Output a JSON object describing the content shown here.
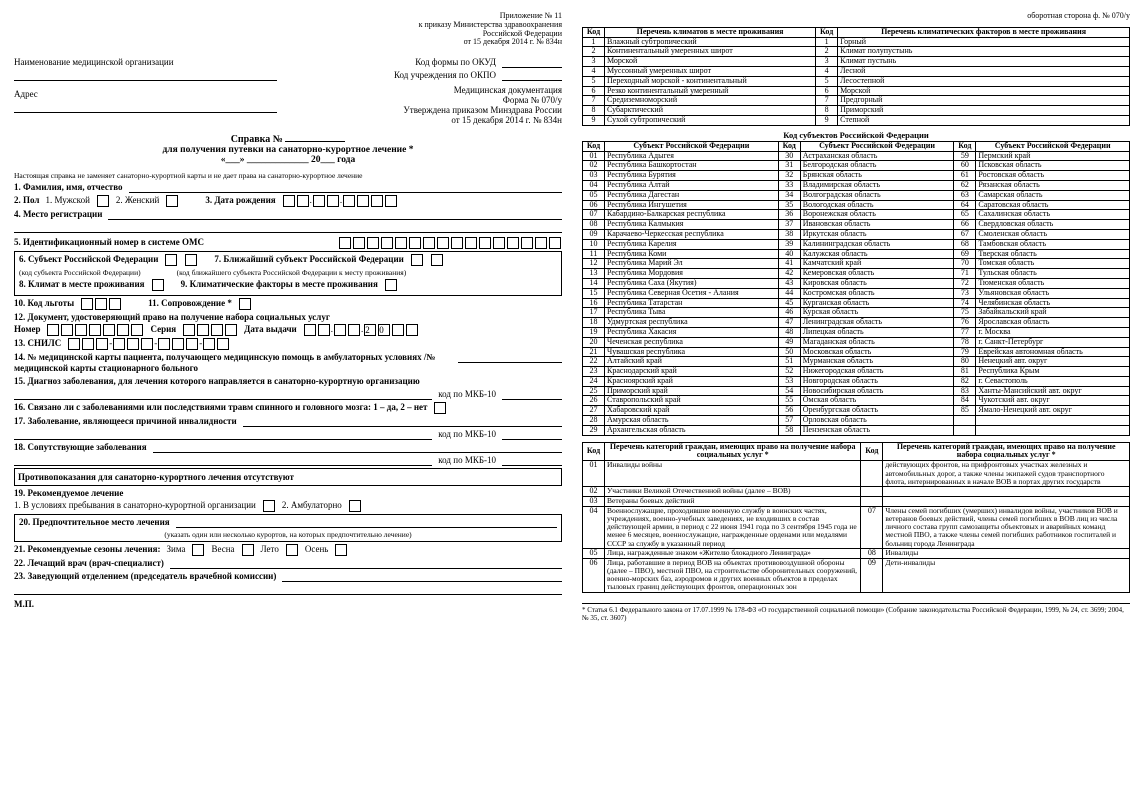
{
  "leftPage": {
    "appendix": [
      "Приложение № 11",
      "к приказу Министерства здравоохранения",
      "Российской Федерации",
      "от 15 декабря 2014 г. № 834н"
    ],
    "orgLabel": "Наименование медицинской организации",
    "addressLabel": "Адрес",
    "codes": {
      "okud": "Код формы по ОКУД",
      "okpo": "Код учреждения по ОКПО"
    },
    "docHdr": [
      "Медицинская документация",
      "Форма № 070/у",
      "Утверждена приказом Минздрава России",
      "от 15 декабря 2014 г. № 834н"
    ],
    "title1": "Справка №",
    "title2": "для получения путевки на санаторно-курортное лечение *",
    "dateLine": "«___» _____________ 20___ года",
    "note": "Настоящая справка не заменяет санаторно-курортной карты и не дает права на санаторно-курортное лечение",
    "f1": "1. Фамилия, имя, отчество",
    "f2": "2. Пол",
    "f2a": "1. Мужской",
    "f2b": "2. Женский",
    "f3": "3. Дата рождения",
    "f4": "4. Место регистрации",
    "f5": "5. Идентификационный номер в системе ОМС",
    "f6": "6. Субъект Российской Федерации",
    "f6s": "(код субъекта Российской Федерации)",
    "f7": "7. Ближайший субъект Российской Федерации",
    "f7s": "(код ближайшего субъекта Российской Федерации к месту проживания)",
    "f8": "8. Климат в месте проживания",
    "f9": "9. Климатические факторы в месте проживания",
    "f10": "10. Код льготы",
    "f11": "11. Сопровождение *",
    "f12": "12. Документ, удостоверяющий право на получение набора социальных услуг",
    "f12n": "Номер",
    "f12s": "Серия",
    "f12d": "Дата выдачи",
    "f13": "13. СНИЛС",
    "f14": "14. № медицинской карты пациента, получающего медицинскую помощь в амбулаторных условиях /№ медицинской карты стационарного больного",
    "f15": "15. Диагноз заболевания, для лечения которого направляется в санаторно-курортную организацию",
    "mkb": "код по МКБ-10",
    "f16": "16. Связано ли с заболеваниями или последствиями травм спинного и головного мозга: 1 – да, 2 – нет",
    "f17": "17. Заболевание, являющееся причиной инвалидности",
    "f18": "18. Сопутствующие заболевания",
    "contra": "Противопоказания для санаторно-курортного лечения отсутствуют",
    "f19": "19. Рекомендуемое лечение",
    "f19a": "1. В условиях пребывания в санаторно-курортной организации",
    "f19b": "2. Амбулаторно",
    "f20": "20. Предпочтительное место лечения",
    "f20s": "(указать один или несколько курортов, на которых предпочтительно лечение)",
    "f21": "21. Рекомендуемые сезоны лечения:",
    "s1": "Зима",
    "s2": "Весна",
    "s3": "Лето",
    "s4": "Осень",
    "f22": "22. Лечащий врач (врач-специалист)",
    "f23": "23. Заведующий отделением (председатель врачебной комиссии)",
    "mp": "М.П."
  },
  "rightPage": {
    "corner": "оборотная сторона ф. № 070/у",
    "climates": {
      "h1": "Код",
      "h2": "Перечень климатов в месте проживания",
      "h3": "Код",
      "h4": "Перечень климатических факторов в месте проживания",
      "rows": [
        [
          "1",
          "Влажный субтропический",
          "1",
          "Горный"
        ],
        [
          "2",
          "Континентальный умеренных широт",
          "2",
          "Климат полупустынь"
        ],
        [
          "3",
          "Морской",
          "3",
          "Климат пустынь"
        ],
        [
          "4",
          "Муссонный умеренных широт",
          "4",
          "Лесной"
        ],
        [
          "5",
          "Переходный морской - континентальный",
          "5",
          "Лесостепной"
        ],
        [
          "6",
          "Резко континентальный умеренный",
          "6",
          "Морской"
        ],
        [
          "7",
          "Средиземноморский",
          "7",
          "Предгорный"
        ],
        [
          "8",
          "Субарктический",
          "8",
          "Приморский"
        ],
        [
          "9",
          "Сухой субтропический",
          "9",
          "Степной"
        ]
      ]
    },
    "subjectsTitle": "Код субъектов Российской Федерации",
    "subjectsHdr": [
      "Код",
      "Субъект Российской Федерации",
      "Код",
      "Субъект Российской Федерации",
      "Код",
      "Субъект Российской Федерации"
    ],
    "subjects": [
      [
        "01",
        "Республика Адыгея",
        "30",
        "Астраханская область",
        "59",
        "Пермский край"
      ],
      [
        "02",
        "Республика Башкортостан",
        "31",
        "Белгородская область",
        "60",
        "Псковская область"
      ],
      [
        "03",
        "Республика Бурятия",
        "32",
        "Брянская область",
        "61",
        "Ростовская область"
      ],
      [
        "04",
        "Республика Алтай",
        "33",
        "Владимирская область",
        "62",
        "Рязанская область"
      ],
      [
        "05",
        "Республика Дагестан",
        "34",
        "Волгоградская область",
        "63",
        "Самарская область"
      ],
      [
        "06",
        "Республика Ингушетия",
        "35",
        "Вологодская область",
        "64",
        "Саратовская область"
      ],
      [
        "07",
        "Кабардино-Балкарская республика",
        "36",
        "Воронежская область",
        "65",
        "Сахалинская область"
      ],
      [
        "08",
        "Республика Калмыкия",
        "37",
        "Ивановская область",
        "66",
        "Свердловская область"
      ],
      [
        "09",
        "Карачаево-Черкесская республика",
        "38",
        "Иркутская область",
        "67",
        "Смоленская область"
      ],
      [
        "10",
        "Республика Карелия",
        "39",
        "Калининградская область",
        "68",
        "Тамбовская область"
      ],
      [
        "11",
        "Республика Коми",
        "40",
        "Калужская область",
        "69",
        "Тверская область"
      ],
      [
        "12",
        "Республика Марий Эл",
        "41",
        "Камчатский край",
        "70",
        "Томская область"
      ],
      [
        "13",
        "Республика Мордовия",
        "42",
        "Кемеровская область",
        "71",
        "Тульская область"
      ],
      [
        "14",
        "Республика Саха (Якутия)",
        "43",
        "Кировская область",
        "72",
        "Тюменская область"
      ],
      [
        "15",
        "Республика Северная Осетия - Алания",
        "44",
        "Костромская область",
        "73",
        "Ульяновская область"
      ],
      [
        "16",
        "Республика Татарстан",
        "45",
        "Курганская область",
        "74",
        "Челябинская область"
      ],
      [
        "17",
        "Республика Тыва",
        "46",
        "Курская область",
        "75",
        "Забайкальский край"
      ],
      [
        "18",
        "Удмуртская республика",
        "47",
        "Ленинградская область",
        "76",
        "Ярославская область"
      ],
      [
        "19",
        "Республика Хакасия",
        "48",
        "Липецкая область",
        "77",
        "г. Москва"
      ],
      [
        "20",
        "Чеченская республика",
        "49",
        "Магаданская область",
        "78",
        "г. Санкт-Петербург"
      ],
      [
        "21",
        "Чувашская республика",
        "50",
        "Московская область",
        "79",
        "Еврейская автономная область"
      ],
      [
        "22",
        "Алтайский край",
        "51",
        "Мурманская область",
        "80",
        "Ненецкий авт. округ"
      ],
      [
        "23",
        "Краснодарский край",
        "52",
        "Нижегородская область",
        "81",
        "Республика Крым"
      ],
      [
        "24",
        "Красноярский край",
        "53",
        "Новгородская область",
        "82",
        "г. Севастополь"
      ],
      [
        "25",
        "Приморский край",
        "54",
        "Новосибирская область",
        "83",
        "Ханты-Мансийский авт. округ"
      ],
      [
        "26",
        "Ставропольский край",
        "55",
        "Омская область",
        "84",
        "Чукотский авт. округ"
      ],
      [
        "27",
        "Хабаровский край",
        "56",
        "Оренбургская область",
        "85",
        "Ямало-Ненецкий авт. округ"
      ],
      [
        "28",
        "Амурская область",
        "57",
        "Орловская область",
        "",
        ""
      ],
      [
        "29",
        "Архангельская область",
        "58",
        "Пензенская область",
        "",
        ""
      ]
    ],
    "catHdr": [
      "Код",
      "Перечень категорий граждан, имеющих право на получение набора социальных услуг *",
      "Код",
      "Перечень категорий граждан, имеющих право на получение набора социальных услуг *"
    ],
    "cats": [
      [
        "01",
        "Инвалиды войны",
        "06 (прод.)",
        "действующих фронтов, на прифронтовых участках железных и автомобильных дорог, а также члены экипажей судов транспортного флота, интернированных в начале ВОВ в портах других государств"
      ],
      [
        "02",
        "Участники Великой Отечественной войны (далее – ВОВ)",
        "",
        ""
      ],
      [
        "03",
        "Ветераны боевых действий",
        "",
        ""
      ],
      [
        "04",
        "Военнослужащие, проходившие военную службу в воинских частях, учреждениях, военно-учебных заведениях, не входивших в состав действующей армии, в период с 22 июня 1941 года по 3 сентября 1945 года не менее 6 месяцев, военнослужащие, награжденные орденами или медалями СССР за службу в указанный период",
        "07",
        "Члены семей погибших (умерших) инвалидов войны, участников ВОВ и ветеранов боевых действий, члены семей погибших в ВОВ лиц из числа личного состава групп самозащиты объектовых и аварийных команд местной ПВО, а также члены семей погибших работников госпиталей и больниц города Ленинграда"
      ],
      [
        "05",
        "Лица, награжденные знаком «Жителю блокадного Ленинграда»",
        "08",
        "Инвалиды"
      ],
      [
        "06",
        "Лица, работавшие в период ВОВ на объектах противовоздушной обороны (далее – ПВО), местной ПВО, на строительстве оборонительных сооружений, военно-морских баз, аэродромов и других военных объектов в пределах тыловых границ действующих фронтов, операционных зон",
        "09",
        "Дети-инвалиды"
      ]
    ],
    "footnote": "* Статья 6.1 Федерального закона от 17.07.1999 № 178-ФЗ «О государственной социальной помощи» (Собрание законодательства Российской Федерации, 1999, № 24, ст. 3699; 2004, № 35, ст. 3607)"
  }
}
